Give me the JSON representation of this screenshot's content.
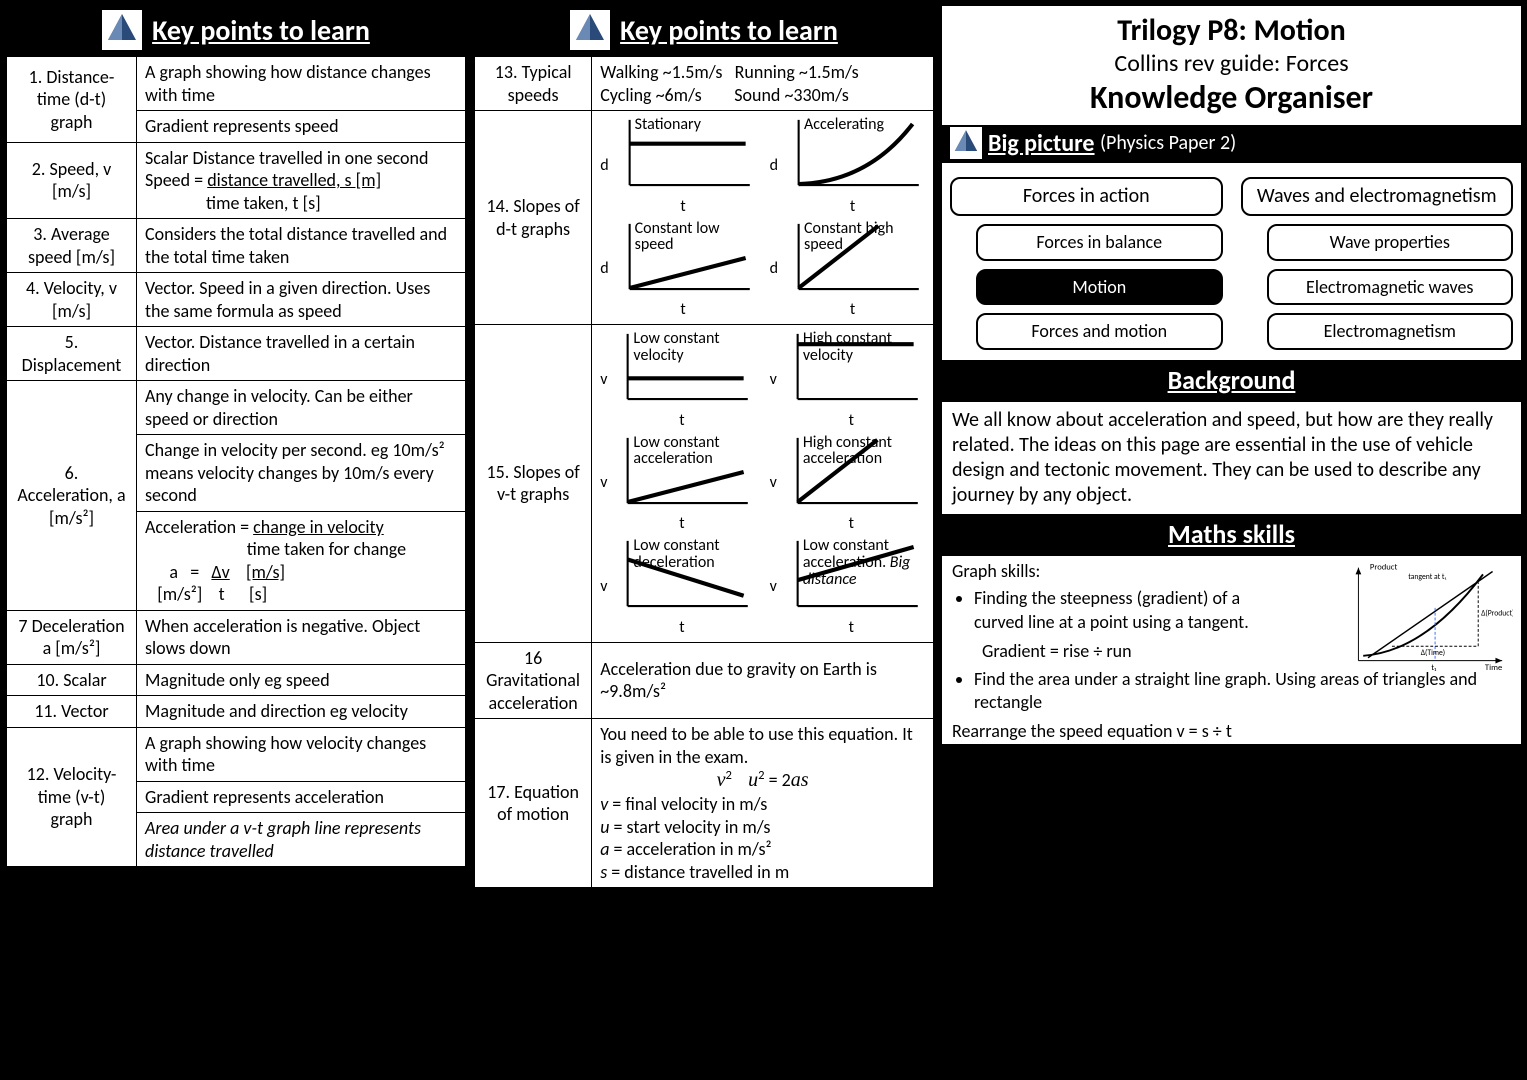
{
  "headers": {
    "key_points": "Key points to learn",
    "big_picture": "Big picture",
    "big_picture_sub": "(Physics Paper 2)",
    "background": "Background",
    "maths": "Maths skills"
  },
  "title": {
    "l1": "Trilogy P8: Motion",
    "l2": "Collins rev guide: Forces",
    "l3": "Knowledge Organiser"
  },
  "col1": [
    {
      "term": "1. Distance-time (d-t) graph",
      "defs": [
        "A graph showing how distance changes with time",
        "Gradient represents speed"
      ]
    },
    {
      "term": "2. Speed, v [m/s]",
      "defs": [
        "Scalar Distance travelled in one second\nSpeed = distance travelled, s [m]\n               time taken, t [s]"
      ]
    },
    {
      "term": "3. Average speed [m/s]",
      "defs": [
        "Considers the total distance travelled and the total time taken"
      ]
    },
    {
      "term": "4. Velocity, v [m/s]",
      "defs": [
        "Vector. Speed in a given direction. Uses the same formula as speed"
      ]
    },
    {
      "term": "5. Displacement",
      "defs": [
        "Vector. Distance travelled in a certain direction"
      ]
    },
    {
      "term": "6. Acceleration, a [m/s²]",
      "defs": [
        "Any change in velocity. Can be either speed or direction",
        "Change in velocity per second. eg 10m/s² means velocity changes by 10m/s every second",
        "Acceleration = change in velocity\n                         time taken for change\n        a    =   Δv    [m/s]\n     [m/s²]     t       [s]"
      ]
    },
    {
      "term": "7 Deceleration a  [m/s²]",
      "defs": [
        "When acceleration is negative. Object slows down"
      ]
    },
    {
      "term": "10. Scalar",
      "defs": [
        "Magnitude only eg speed"
      ]
    },
    {
      "term": "11. Vector",
      "defs": [
        "Magnitude and direction eg velocity"
      ]
    },
    {
      "term": "12. Velocity-time (v-t) graph",
      "defs": [
        "A graph showing how velocity changes with time",
        "Gradient represents acceleration",
        "Area under a v-t graph line represents distance travelled"
      ]
    }
  ],
  "col2_r13": {
    "term": "13. Typical speeds",
    "def": "Walking ~1.5m/s   Running ~1.5m/s\nCycling ~6m/s        Sound ~330m/s"
  },
  "col2_r14": {
    "term": "14. Slopes of d-t graphs",
    "graphs": [
      {
        "label": "Stationary",
        "type": "flat",
        "y": "d"
      },
      {
        "label": "Accelerating",
        "type": "curve",
        "y": "d"
      },
      {
        "label": "Constant low speed",
        "type": "low",
        "y": "d"
      },
      {
        "label": "Constant high speed",
        "type": "high",
        "y": "d"
      }
    ]
  },
  "col2_r15": {
    "term": "15. Slopes of v-t graphs",
    "graphs": [
      {
        "label": "Low constant velocity",
        "type": "flatlow",
        "y": "v"
      },
      {
        "label": "High constant velocity",
        "type": "flathigh",
        "y": "v"
      },
      {
        "label": "Low constant acceleration",
        "type": "low",
        "y": "v"
      },
      {
        "label": "High constant acceleration",
        "type": "high",
        "y": "v"
      },
      {
        "label": "Low constant deceleration",
        "type": "down",
        "y": "v"
      },
      {
        "label": "Low constant acceleration. Big distance",
        "type": "lowhigh",
        "y": "v",
        "ital_last": true
      }
    ]
  },
  "col2_r16": {
    "term": "16 Gravitational acceleration",
    "def": "Acceleration due to gravity on Earth is ~9.8m/s²"
  },
  "col2_r17": {
    "term": "17. Equation of motion",
    "lines": [
      "You need to be able to use this equation. It is given in the exam.",
      "v²    u² = 2as",
      "v = final velocity in m/s",
      "u = start velocity in m/s",
      "a = acceleration in m/s²",
      "s = distance travelled in m"
    ]
  },
  "big_picture": {
    "left_head": "Forces in action",
    "right_head": "Waves and electromagnetism",
    "left": [
      "Forces in balance",
      "Motion",
      "Forces and motion"
    ],
    "right": [
      "Wave properties",
      "Electromagnetic waves",
      "Electromagnetism"
    ],
    "active": "Motion"
  },
  "background_text": "We all know about acceleration and speed, but how are they really related. The ideas on this page are essential in the use of vehicle design and tectonic movement. They can be used to describe any journey by any object.",
  "maths": {
    "heading": "Graph skills:",
    "b1": "Finding the steepness (gradient) of a curved line at a point using a tangent.",
    "eq": "Gradient = rise ÷ run",
    "b2": "Find the area under a straight line graph. Using areas of triangles and rectangle",
    "last": "Rearrange the speed equation v = s ÷ t",
    "mini_labels": {
      "prod": "Product",
      "tan": "tangent at t₁",
      "dP": "Δ(Product)",
      "dT": "Δ(Time)",
      "t1": "t₁",
      "time": "Time"
    }
  }
}
